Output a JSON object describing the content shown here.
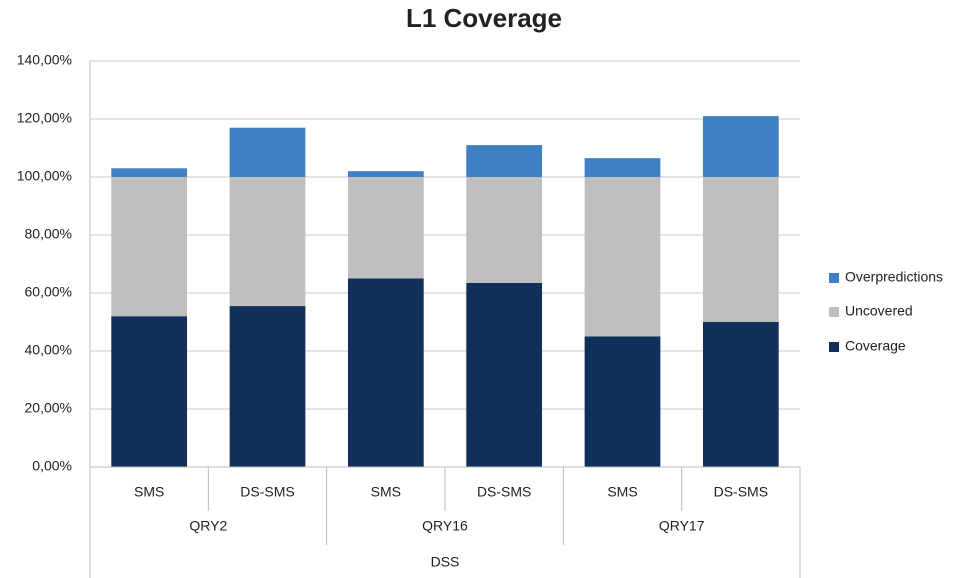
{
  "chart_data": {
    "type": "stacked_bar",
    "title": "L1 Coverage",
    "categories": [
      "SMS",
      "DS-SMS",
      "SMS",
      "DS-SMS",
      "SMS",
      "DS-SMS"
    ],
    "groups": [
      "QRY2",
      "QRY16",
      "QRY17"
    ],
    "supergroup": "DSS",
    "series": [
      {
        "name": "Coverage",
        "color": "#10305a",
        "values": [
          52,
          55.5,
          65,
          63.5,
          45,
          50
        ]
      },
      {
        "name": "Uncovered",
        "color": "#bfbfbf",
        "values": [
          48,
          44.5,
          35,
          36.5,
          55,
          50
        ]
      },
      {
        "name": "Overpredictions",
        "color": "#3f7fc4",
        "values": [
          3,
          17,
          2,
          11,
          6.5,
          21
        ]
      }
    ],
    "ylim": [
      0,
      140
    ],
    "yticks": [
      {
        "value": 0,
        "label": "0,00%"
      },
      {
        "value": 20,
        "label": "20,00%"
      },
      {
        "value": 40,
        "label": "40,00%"
      },
      {
        "value": 60,
        "label": "60,00%"
      },
      {
        "value": 80,
        "label": "80,00%"
      },
      {
        "value": 100,
        "label": "100,00%"
      },
      {
        "value": 120,
        "label": "120,00%"
      },
      {
        "value": 140,
        "label": "140,00%"
      }
    ],
    "grid": true
  }
}
